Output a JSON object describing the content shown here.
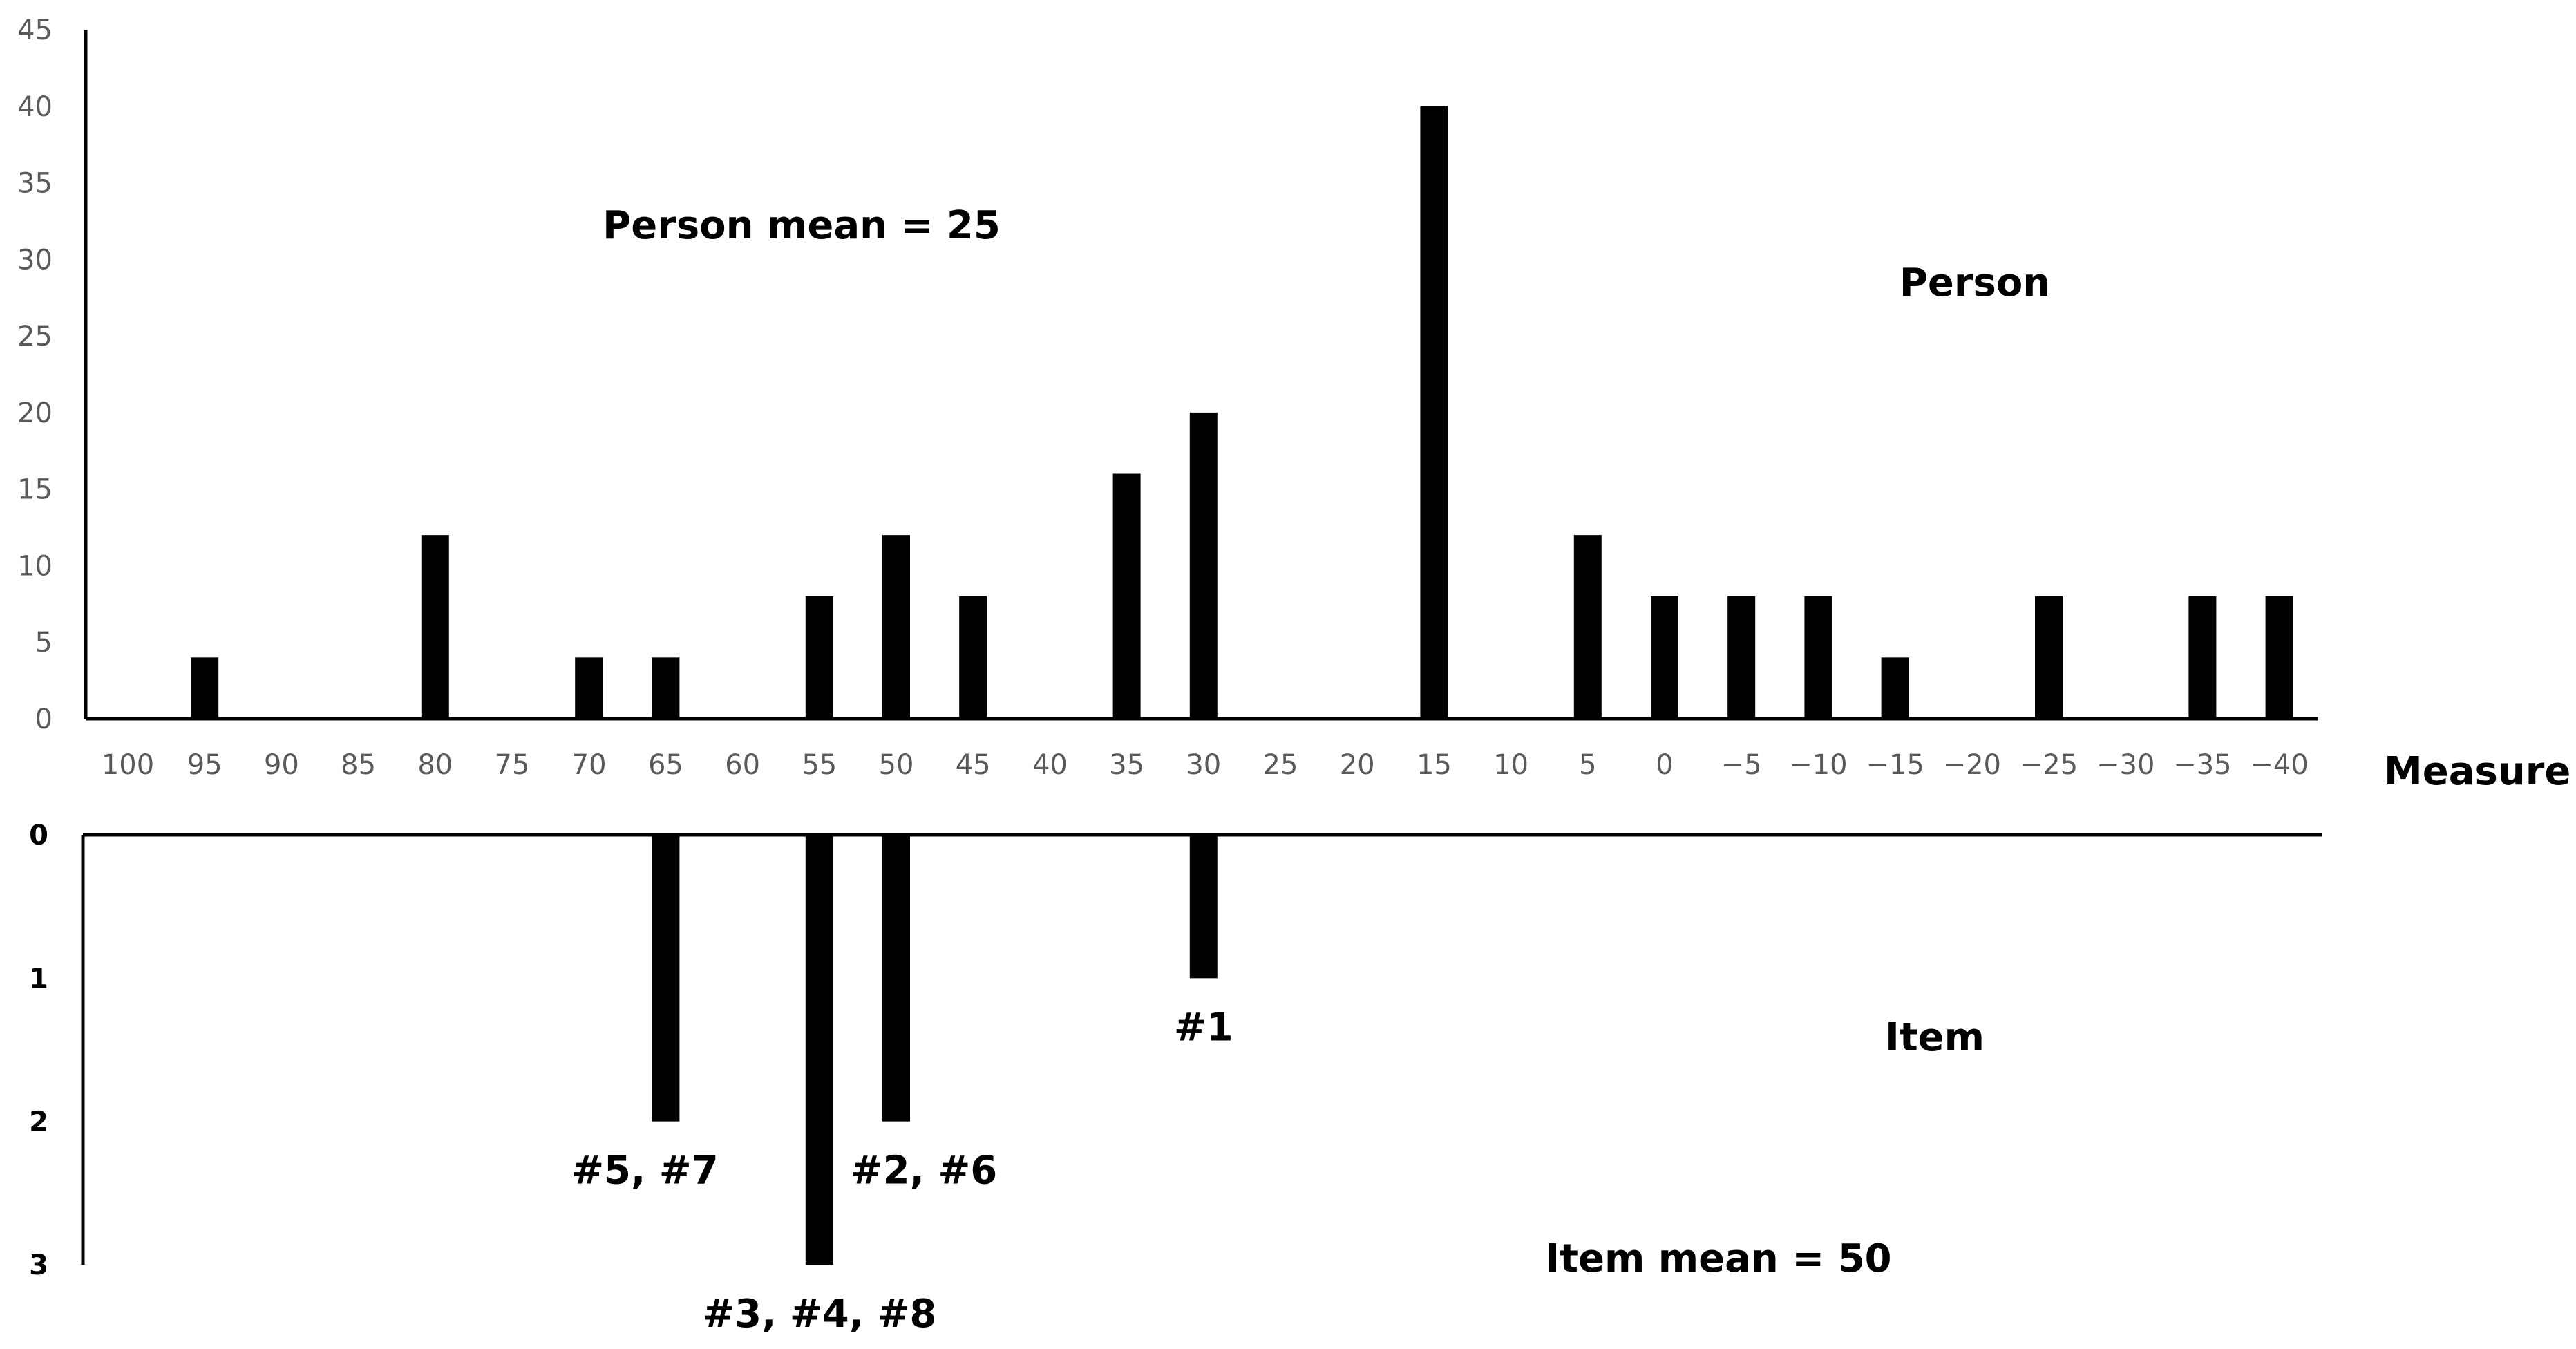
{
  "chart_data": {
    "type": "bar",
    "x_label": "Measure",
    "categories": [
      "100",
      "95",
      "90",
      "85",
      "80",
      "75",
      "70",
      "65",
      "60",
      "55",
      "50",
      "45",
      "40",
      "35",
      "30",
      "25",
      "20",
      "15",
      "10",
      "5",
      "0",
      "−5",
      "−10",
      "−15",
      "−20",
      "−25",
      "−30",
      "−35",
      "−40"
    ],
    "person": {
      "label": "Person",
      "mean_label": "Person mean = 25",
      "y_ticks": [
        "0",
        "5",
        "10",
        "15",
        "20",
        "25",
        "30",
        "35",
        "40",
        "45"
      ],
      "ylim": [
        0,
        45
      ],
      "values": [
        0,
        4,
        0,
        0,
        12,
        0,
        4,
        4,
        0,
        8,
        12,
        8,
        0,
        16,
        20,
        0,
        0,
        40,
        0,
        12,
        8,
        8,
        8,
        4,
        0,
        8,
        0,
        8,
        8
      ],
      "color": "#000000"
    },
    "item": {
      "label": "Item",
      "mean_label": "Item mean = 50",
      "y_ticks": [
        "0",
        "1",
        "2",
        "3"
      ],
      "ylim": [
        0,
        3
      ],
      "values": [
        0,
        0,
        0,
        0,
        0,
        0,
        0,
        2,
        0,
        3,
        2,
        0,
        0,
        0,
        1,
        0,
        0,
        0,
        0,
        0,
        0,
        0,
        0,
        0,
        0,
        0,
        0,
        0,
        0
      ],
      "bar_labels": [
        {
          "category": "65",
          "text": "#5, #7"
        },
        {
          "category": "55",
          "text": "#3, #4, #8"
        },
        {
          "category": "50",
          "text": "#2, #6"
        },
        {
          "category": "30",
          "text": "#1"
        }
      ],
      "color": "#000000"
    },
    "grid": false
  }
}
